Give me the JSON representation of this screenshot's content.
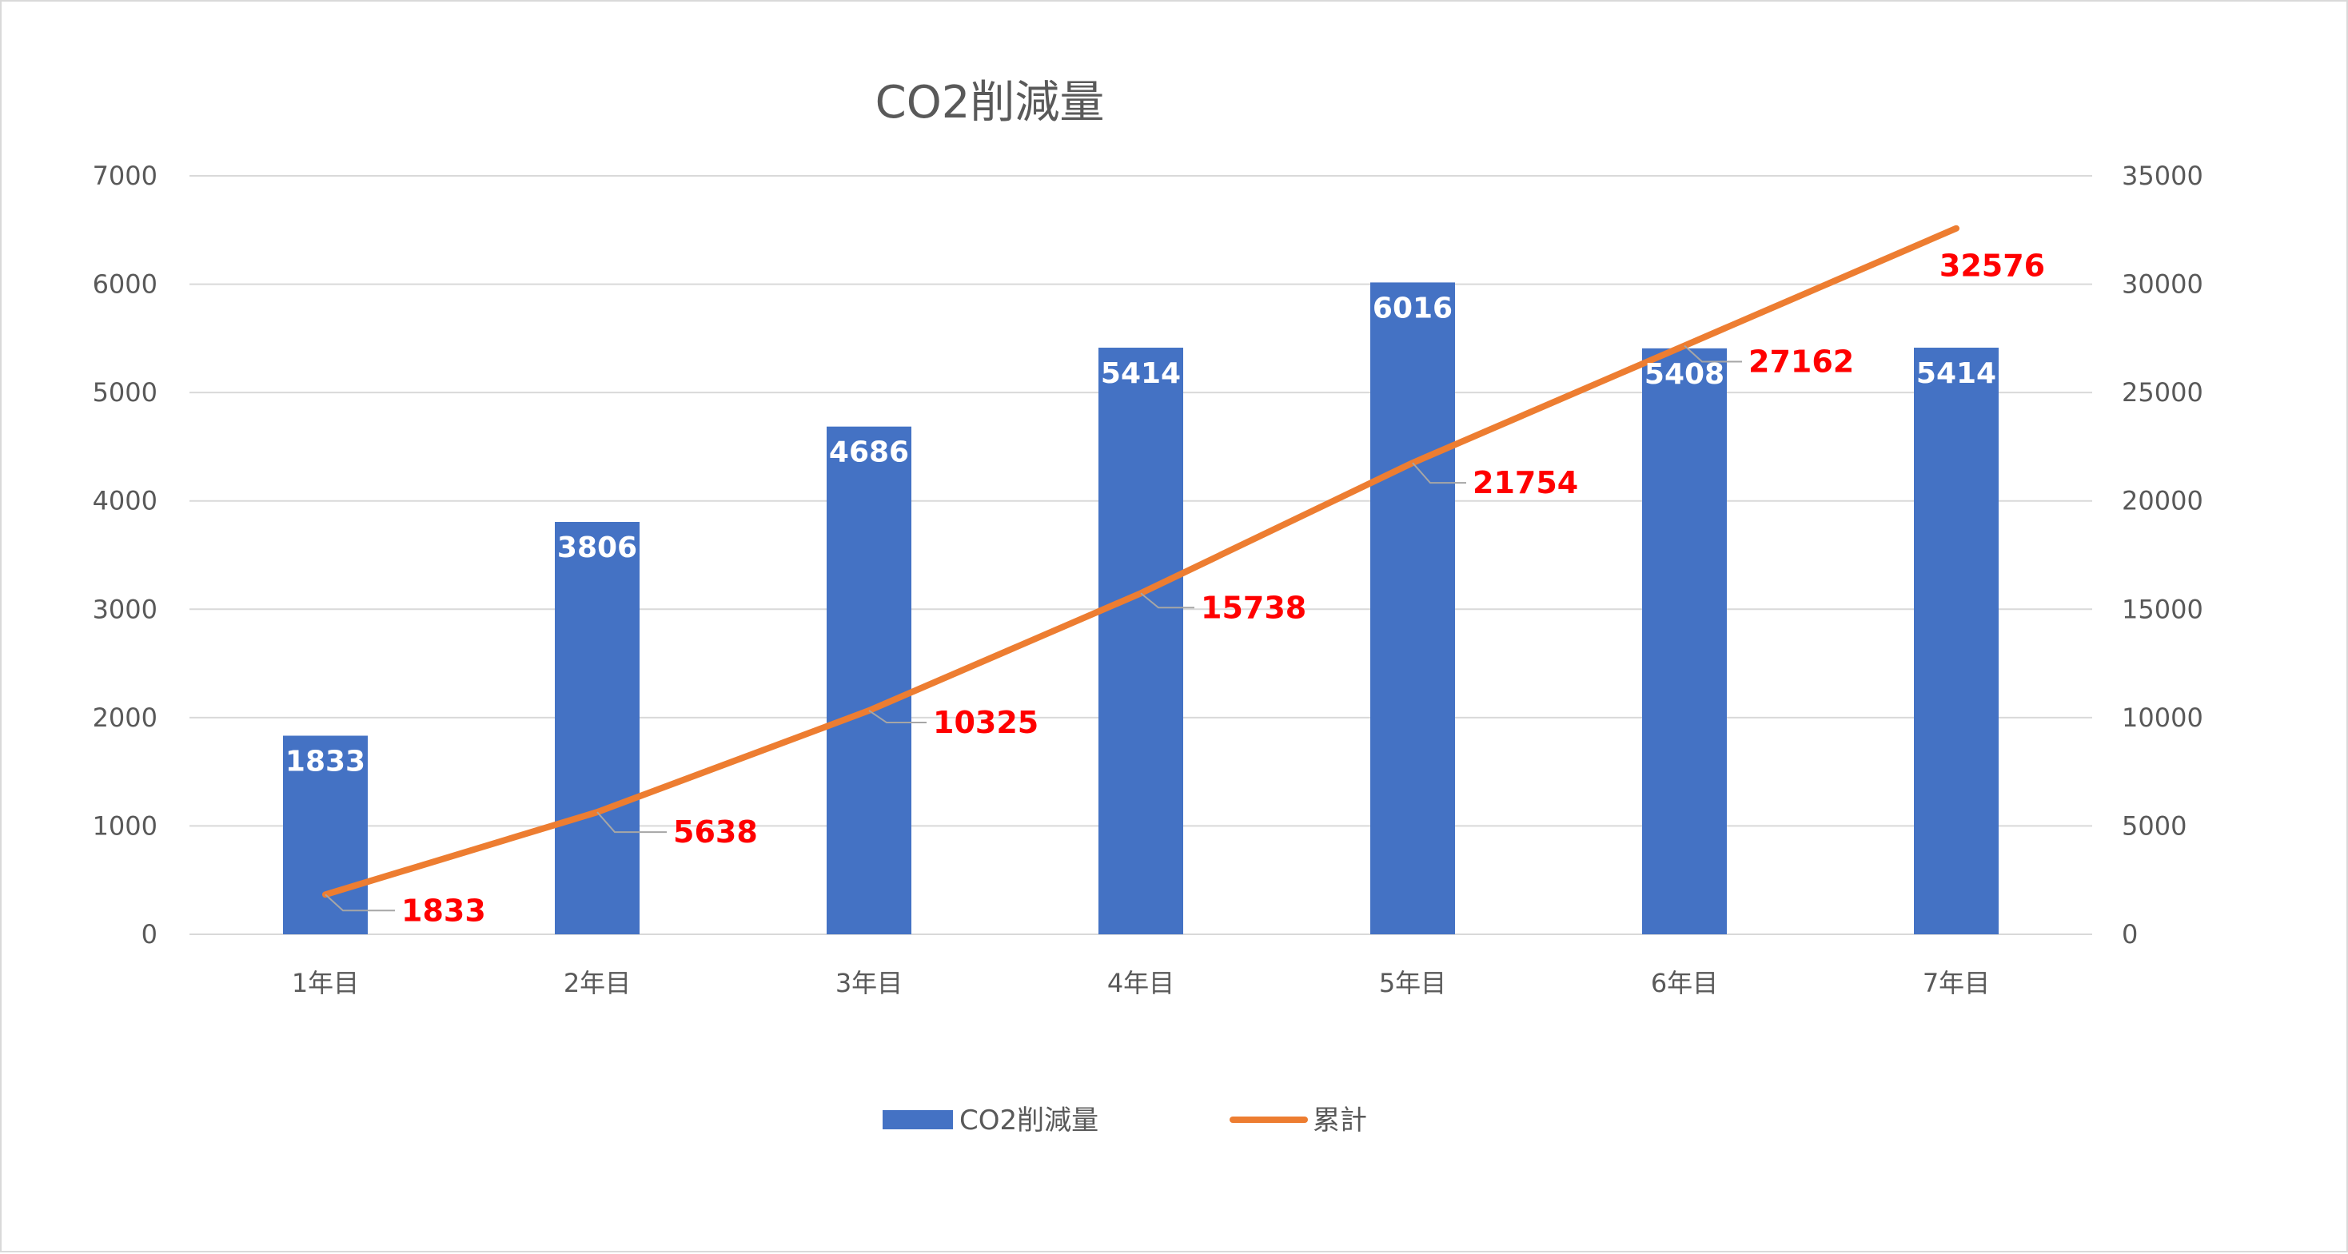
{
  "chart_data": {
    "type": "bar",
    "title": "CO2削減量",
    "categories": [
      "1年目",
      "2年目",
      "3年目",
      "4年目",
      "5年目",
      "6年目",
      "7年目"
    ],
    "series": [
      {
        "name": "CO2削減量",
        "type": "bar",
        "axis": "left",
        "color": "#4472c4",
        "values": [
          1833,
          3806,
          4686,
          5414,
          6016,
          5408,
          5414
        ]
      },
      {
        "name": "累計",
        "type": "line",
        "axis": "right",
        "color": "#ed7d31",
        "label_color": "#ff0000",
        "values": [
          1833,
          5638,
          10325,
          15738,
          21754,
          27162,
          32576
        ]
      }
    ],
    "left_axis": {
      "ylim": [
        0,
        7000
      ],
      "ticks": [
        0,
        1000,
        2000,
        3000,
        4000,
        5000,
        6000,
        7000
      ]
    },
    "right_axis": {
      "ylim": [
        0,
        35000
      ],
      "ticks": [
        0,
        5000,
        10000,
        15000,
        20000,
        25000,
        30000,
        35000
      ]
    },
    "grid": true,
    "legend_position": "bottom",
    "colors": {
      "gridline": "#d9d9d9",
      "text": "#595959",
      "leader": "#a6a6a6"
    }
  }
}
